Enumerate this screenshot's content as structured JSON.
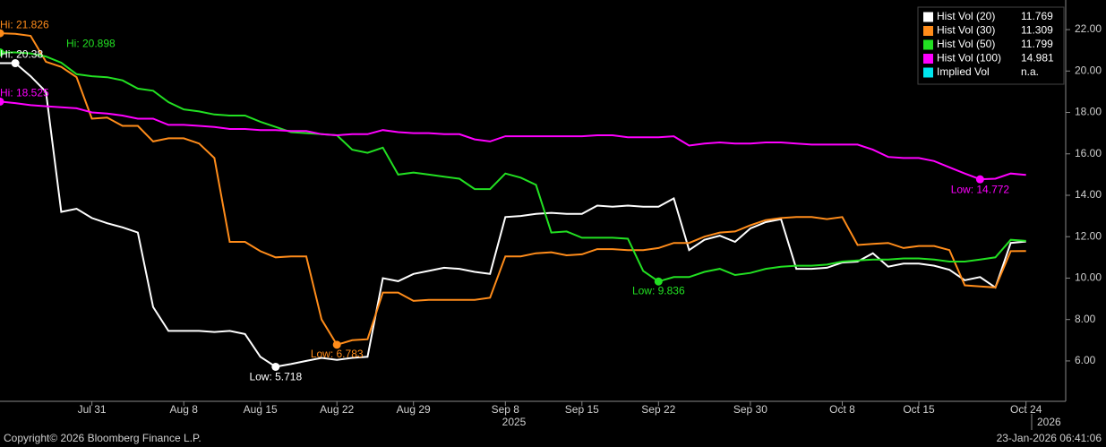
{
  "chart_data": {
    "type": "line",
    "categories": [
      null,
      null,
      null,
      null,
      null,
      null,
      "Jul 31",
      null,
      null,
      null,
      null,
      null,
      "Aug 8",
      null,
      null,
      null,
      null,
      "Aug 15",
      null,
      null,
      null,
      null,
      "Aug 22",
      null,
      null,
      null,
      null,
      "Aug 29",
      null,
      null,
      null,
      null,
      null,
      "Sep 8",
      null,
      null,
      null,
      null,
      "Sep 15",
      null,
      null,
      null,
      null,
      "Sep 22",
      null,
      null,
      null,
      null,
      null,
      "Sep 30",
      null,
      null,
      null,
      null,
      null,
      "Oct 8",
      null,
      null,
      null,
      null,
      "Oct 15",
      null,
      null,
      null,
      null,
      null,
      null,
      "Oct 24"
    ],
    "series": [
      {
        "name": "Hist Vol (20)",
        "color": "#ffffff",
        "values": [
          20.38,
          20.38,
          19.75,
          19.0,
          13.2,
          13.35,
          12.9,
          12.65,
          12.45,
          12.2,
          8.6,
          7.45,
          7.45,
          7.45,
          7.4,
          7.45,
          7.3,
          6.2,
          5.718,
          5.85,
          6.0,
          6.15,
          6.05,
          6.15,
          6.2,
          10.0,
          9.85,
          10.2,
          10.35,
          10.5,
          10.45,
          10.3,
          10.2,
          12.95,
          13.0,
          13.1,
          13.15,
          13.1,
          13.1,
          13.5,
          13.45,
          13.5,
          13.45,
          13.45,
          13.85,
          11.35,
          11.85,
          12.05,
          11.75,
          12.4,
          12.7,
          12.85,
          10.45,
          10.45,
          10.5,
          10.75,
          10.8,
          11.2,
          10.55,
          10.7,
          10.7,
          10.6,
          10.4,
          9.9,
          10.05,
          9.55,
          11.7,
          11.769
        ]
      },
      {
        "name": "Hist Vol (30)",
        "color": "#ff8c1a",
        "values": [
          21.826,
          21.8,
          21.7,
          20.45,
          20.2,
          19.7,
          17.7,
          17.75,
          17.35,
          17.35,
          16.6,
          16.75,
          16.75,
          16.5,
          15.8,
          11.75,
          11.75,
          11.3,
          11.0,
          11.05,
          11.05,
          8.0,
          6.783,
          7.0,
          7.05,
          9.3,
          9.3,
          8.9,
          8.95,
          8.95,
          8.95,
          8.95,
          9.05,
          11.05,
          11.05,
          11.2,
          11.25,
          11.1,
          11.15,
          11.4,
          11.4,
          11.35,
          11.35,
          11.45,
          11.7,
          11.7,
          12.0,
          12.2,
          12.25,
          12.55,
          12.8,
          12.9,
          12.95,
          12.95,
          12.85,
          12.95,
          11.6,
          11.65,
          11.7,
          11.45,
          11.55,
          11.55,
          11.35,
          9.65,
          9.6,
          9.55,
          11.3,
          11.309
        ]
      },
      {
        "name": "Hist Vol (50)",
        "color": "#22e022",
        "values": [
          20.898,
          20.9,
          20.85,
          20.7,
          20.4,
          19.85,
          19.75,
          19.7,
          19.55,
          19.15,
          19.05,
          18.5,
          18.15,
          18.05,
          17.9,
          17.85,
          17.85,
          17.55,
          17.3,
          17.05,
          17.0,
          16.95,
          16.9,
          16.2,
          16.05,
          16.3,
          15.0,
          15.1,
          15.0,
          14.9,
          14.8,
          14.3,
          14.3,
          15.05,
          14.85,
          14.5,
          12.2,
          12.25,
          11.95,
          11.95,
          11.95,
          11.9,
          10.35,
          9.836,
          10.05,
          10.05,
          10.3,
          10.45,
          10.15,
          10.25,
          10.45,
          10.55,
          10.6,
          10.6,
          10.65,
          10.8,
          10.85,
          10.9,
          10.9,
          10.95,
          10.95,
          10.9,
          10.8,
          10.8,
          10.9,
          11.0,
          11.85,
          11.799
        ]
      },
      {
        "name": "Hist Vol (100)",
        "color": "#ff00ff",
        "values": [
          18.525,
          18.45,
          18.35,
          18.3,
          18.25,
          18.2,
          18.0,
          17.95,
          17.85,
          17.7,
          17.7,
          17.4,
          17.4,
          17.35,
          17.3,
          17.2,
          17.2,
          17.15,
          17.15,
          17.1,
          17.1,
          16.95,
          16.9,
          16.95,
          16.95,
          17.15,
          17.05,
          17.0,
          17.0,
          16.95,
          16.95,
          16.7,
          16.6,
          16.85,
          16.85,
          16.85,
          16.85,
          16.85,
          16.85,
          16.9,
          16.9,
          16.8,
          16.8,
          16.8,
          16.85,
          16.4,
          16.5,
          16.55,
          16.5,
          16.5,
          16.55,
          16.55,
          16.5,
          16.45,
          16.45,
          16.45,
          16.45,
          16.2,
          15.85,
          15.8,
          15.8,
          15.65,
          15.35,
          15.05,
          14.772,
          14.8,
          15.05,
          14.981
        ]
      }
    ],
    "extra_legend": {
      "name": "Implied Vol",
      "color": "#00e5ee",
      "value_label": "n.a."
    },
    "annotations": [
      {
        "text": "Hi: 21.826",
        "series": 1,
        "index": 0
      },
      {
        "text": "Hi: 20.898",
        "series": 2,
        "index": 0
      },
      {
        "text": "Hi: 20.38",
        "series": 0,
        "index": 1
      },
      {
        "text": "Hi: 18.525",
        "series": 3,
        "index": 0
      },
      {
        "text": "Low: 5.718",
        "series": 0,
        "index": 18
      },
      {
        "text": "Low: 6.783",
        "series": 1,
        "index": 22
      },
      {
        "text": "Low: 9.836",
        "series": 2,
        "index": 43
      },
      {
        "text": "Low: 14.772",
        "series": 3,
        "index": 64
      }
    ],
    "ylim": [
      4.05,
      23.43
    ],
    "yticks": [
      {
        "value": 6,
        "label": "6.00"
      },
      {
        "value": 8,
        "label": "8.00"
      },
      {
        "value": 10,
        "label": "10.00"
      },
      {
        "value": 12,
        "label": "12.00"
      },
      {
        "value": 14,
        "label": "14.00"
      },
      {
        "value": 16,
        "label": "16.00"
      },
      {
        "value": 18,
        "label": "18.00"
      },
      {
        "value": 20,
        "label": "20.00"
      },
      {
        "value": 22,
        "label": "22.00"
      }
    ],
    "years": [
      "2025",
      "2026"
    ],
    "footer_left": "Copyright© 2026 Bloomberg Finance L.P.",
    "footer_right": "23-Jan-2026 06:41:06",
    "grid": false
  }
}
